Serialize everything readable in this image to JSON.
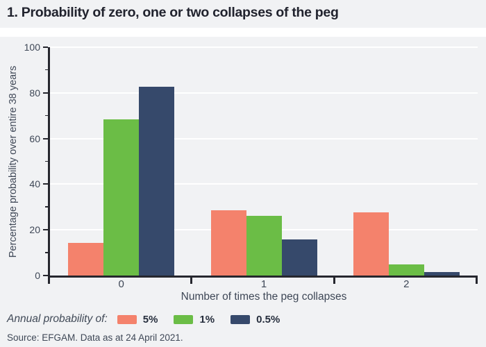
{
  "title": "1. Probability of zero, one or two collapses of the peg",
  "chart_data": {
    "type": "bar",
    "categories": [
      "0",
      "1",
      "2"
    ],
    "series": [
      {
        "name": "5%",
        "color": "#f4826c",
        "values": [
          14.2,
          28.5,
          27.7
        ]
      },
      {
        "name": "1%",
        "color": "#6bbd46",
        "values": [
          68.3,
          26.2,
          4.9
        ]
      },
      {
        "name": "0.5%",
        "color": "#36496b",
        "values": [
          82.7,
          15.8,
          1.5
        ]
      }
    ],
    "xlabel": "Number of times the peg collapses",
    "ylabel": "Percentage probability over entire 38 years",
    "ylim": [
      0,
      100
    ],
    "yticks": [
      0,
      20,
      40,
      60,
      80,
      100
    ],
    "y_minor_ticks": [
      10,
      30,
      50,
      70,
      90
    ],
    "grid": "horizontal white gridlines at major ticks",
    "legend_position": "bottom-left"
  },
  "legend": {
    "label": "Annual probability of:"
  },
  "source": "Source: EFGAM. Data as at 24 April 2021.",
  "colors": {
    "background": "#f1f2f4",
    "grid": "#ffffff",
    "axis": "#26272e",
    "text": "#3e4756",
    "title": "#21232e"
  }
}
